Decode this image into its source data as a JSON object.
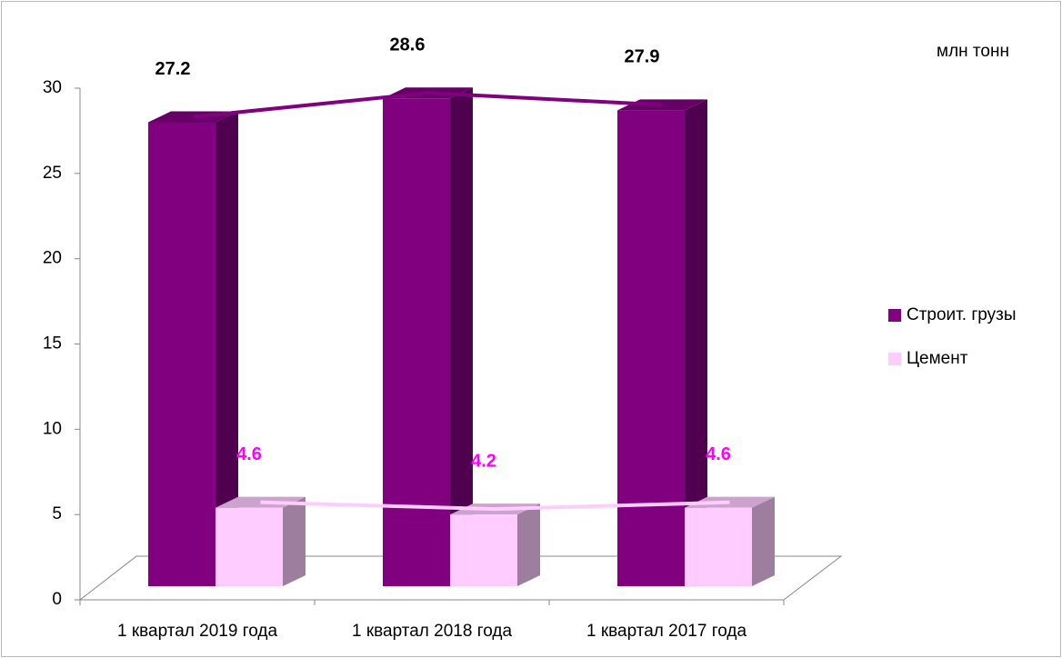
{
  "chart_data": {
    "type": "bar3d",
    "annotation": "млн тонн",
    "categories": [
      "1 квартал 2019 года",
      "1 квартал 2018 года",
      "1 квартал 2017 года"
    ],
    "series": [
      {
        "name": "Строит. грузы",
        "color": "#800080",
        "label_color": "#000000",
        "values": [
          27.2,
          28.6,
          27.9
        ]
      },
      {
        "name": "Цемент",
        "color": "#ffccff",
        "label_color": "#ff00ff",
        "values": [
          4.6,
          4.2,
          4.6
        ]
      }
    ],
    "ylim": [
      0,
      30
    ],
    "yticks": [
      0,
      5,
      10,
      15,
      20,
      25,
      30
    ]
  }
}
